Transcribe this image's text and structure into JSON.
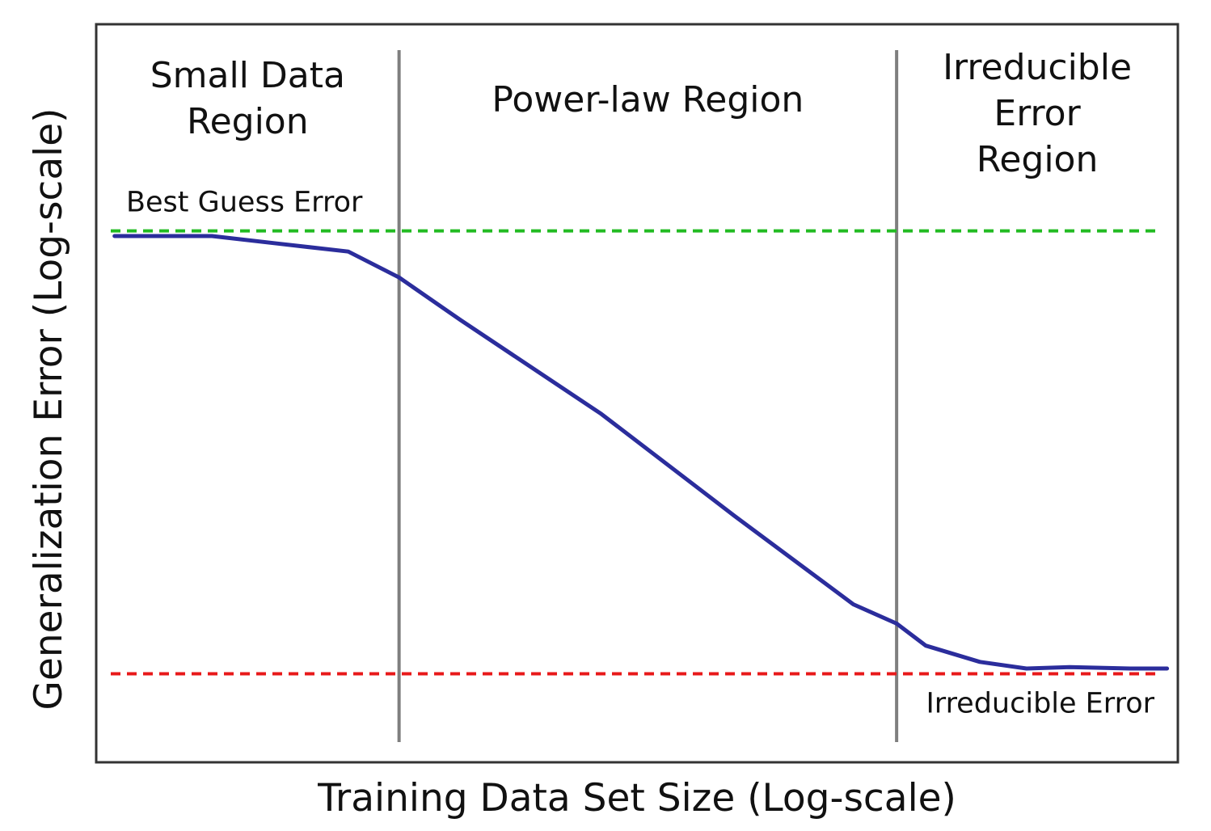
{
  "chart_data": {
    "type": "line",
    "xlabel": "Training Data Set Size (Log-scale)",
    "ylabel": "Generalization Error (Log-scale)",
    "x_scale": "log",
    "y_scale": "log",
    "tick_labels": "none",
    "grid": false,
    "legend": "none",
    "xlim": [
      0,
      10
    ],
    "ylim": [
      0,
      10
    ],
    "regions": [
      {
        "title_lines": [
          "Small Data",
          "Region"
        ],
        "x_start": 0,
        "x_end": 2.8
      },
      {
        "title_lines": [
          "Power-law Region"
        ],
        "x_start": 2.8,
        "x_end": 7.4
      },
      {
        "title_lines": [
          "Irreducible",
          "Error",
          "Region"
        ],
        "x_start": 7.4,
        "x_end": 10
      }
    ],
    "boundaries": [
      {
        "x": 2.8,
        "color": "#7f7f7f"
      },
      {
        "x": 7.4,
        "color": "#7f7f7f"
      }
    ],
    "reference_lines": [
      {
        "label": "Best Guess Error",
        "y": 7.2,
        "color": "#22bb22",
        "style": "dashed"
      },
      {
        "label": "Irreducible Error",
        "y": 1.2,
        "color": "#e8191a",
        "style": "dashed"
      }
    ],
    "series": [
      {
        "color": "#2b2d9c",
        "x": [
          0.17,
          1.07,
          1.67,
          2.33,
          2.8,
          3.37,
          4.67,
          5.9,
          7.0,
          7.4,
          7.67,
          8.17,
          8.6,
          9.0,
          9.57,
          9.9
        ],
        "y": [
          7.13,
          7.13,
          7.03,
          6.92,
          6.57,
          5.99,
          4.72,
          3.34,
          2.14,
          1.88,
          1.58,
          1.36,
          1.27,
          1.29,
          1.27,
          1.27
        ]
      }
    ]
  }
}
